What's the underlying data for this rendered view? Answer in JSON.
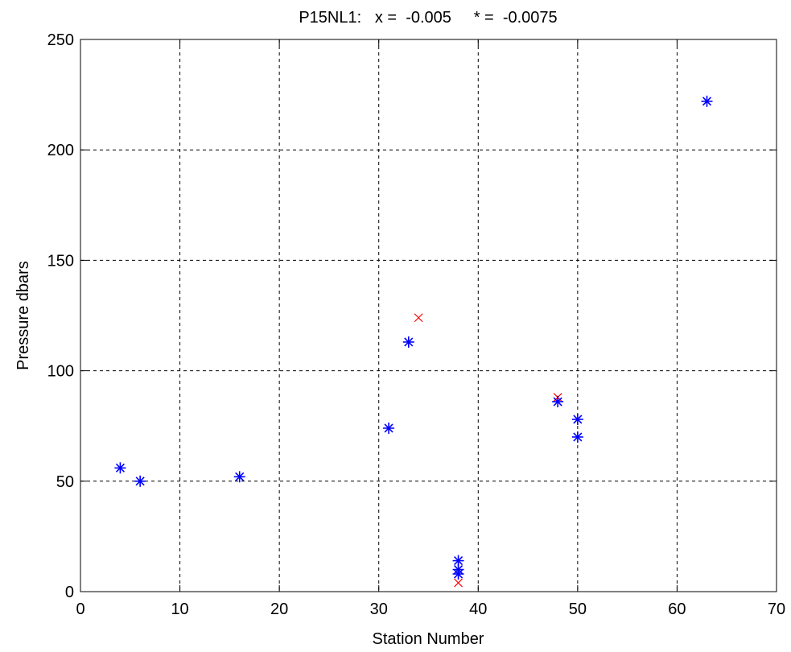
{
  "chart_data": {
    "type": "scatter",
    "title": "P15NL1:   x =  -0.005     * =  -0.0075",
    "xlabel": "Station Number",
    "ylabel": "Pressure dbars",
    "xlim": [
      0,
      70
    ],
    "ylim": [
      0,
      250
    ],
    "xticks": [
      0,
      10,
      20,
      30,
      40,
      50,
      60,
      70
    ],
    "yticks": [
      0,
      50,
      100,
      150,
      200,
      250
    ],
    "grid": true,
    "series": [
      {
        "marker": "x",
        "color": "#ff0000",
        "points": [
          {
            "x": 34,
            "y": 124
          },
          {
            "x": 48,
            "y": 88
          },
          {
            "x": 38,
            "y": 4
          }
        ]
      },
      {
        "marker": "*",
        "color": "#0000ff",
        "points": [
          {
            "x": 4,
            "y": 56
          },
          {
            "x": 6,
            "y": 50
          },
          {
            "x": 16,
            "y": 52
          },
          {
            "x": 31,
            "y": 74
          },
          {
            "x": 33,
            "y": 113
          },
          {
            "x": 38,
            "y": 14
          },
          {
            "x": 38,
            "y": 10
          },
          {
            "x": 38,
            "y": 8
          },
          {
            "x": 48,
            "y": 86
          },
          {
            "x": 50,
            "y": 78
          },
          {
            "x": 50,
            "y": 70
          },
          {
            "x": 63,
            "y": 222
          }
        ]
      }
    ]
  }
}
